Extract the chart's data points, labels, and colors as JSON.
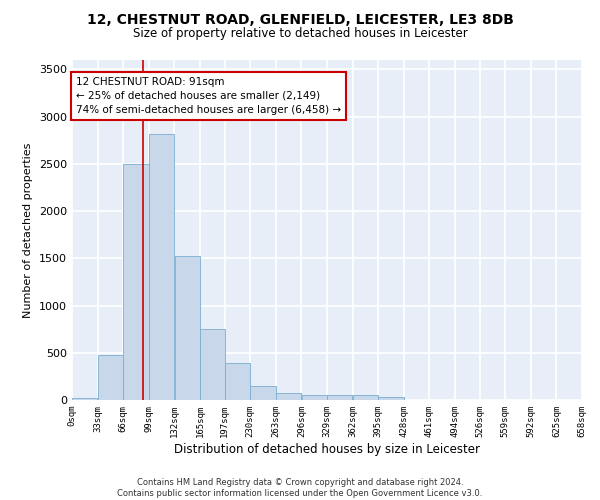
{
  "title": "12, CHESTNUT ROAD, GLENFIELD, LEICESTER, LE3 8DB",
  "subtitle": "Size of property relative to detached houses in Leicester",
  "xlabel": "Distribution of detached houses by size in Leicester",
  "ylabel": "Number of detached properties",
  "bar_color": "#c8d8ea",
  "bar_edgecolor": "#7aaed0",
  "background_color": "#e8eef8",
  "grid_color": "#ffffff",
  "annotation_text": "12 CHESTNUT ROAD: 91sqm\n← 25% of detached houses are smaller (2,149)\n74% of semi-detached houses are larger (6,458) →",
  "vline_x": 91,
  "vline_color": "#cc0000",
  "footnote": "Contains HM Land Registry data © Crown copyright and database right 2024.\nContains public sector information licensed under the Open Government Licence v3.0.",
  "bin_edges": [
    0,
    33,
    66,
    99,
    132,
    165,
    197,
    230,
    263,
    296,
    329,
    362,
    395,
    428,
    461,
    494,
    526,
    559,
    592,
    625,
    658
  ],
  "bar_heights": [
    25,
    480,
    2500,
    2820,
    1520,
    750,
    390,
    145,
    75,
    55,
    55,
    55,
    30,
    0,
    0,
    0,
    0,
    0,
    0,
    0
  ],
  "ylim": [
    0,
    3600
  ],
  "yticks": [
    0,
    500,
    1000,
    1500,
    2000,
    2500,
    3000,
    3500
  ],
  "tick_labels": [
    "0sqm",
    "33sqm",
    "66sqm",
    "99sqm",
    "132sqm",
    "165sqm",
    "197sqm",
    "230sqm",
    "263sqm",
    "296sqm",
    "329sqm",
    "362sqm",
    "395sqm",
    "428sqm",
    "461sqm",
    "494sqm",
    "526sqm",
    "559sqm",
    "592sqm",
    "625sqm",
    "658sqm"
  ]
}
